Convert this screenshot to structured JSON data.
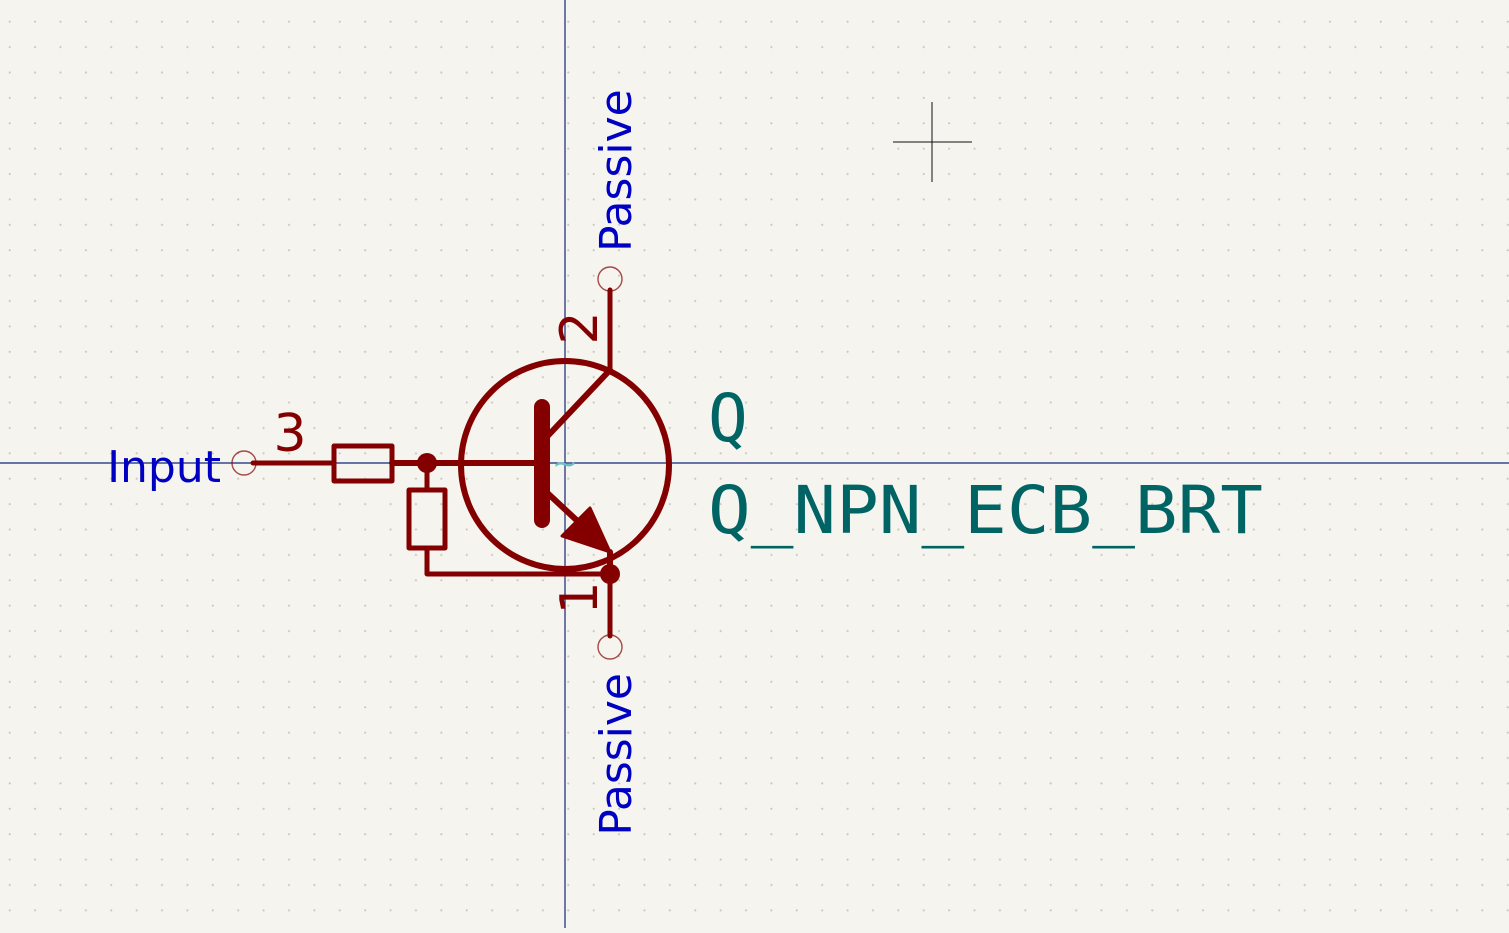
{
  "symbol": {
    "reference": "Q",
    "value": "Q_NPN_ECB_BRT"
  },
  "pins": [
    {
      "number": "3",
      "electrical_type": "Input"
    },
    {
      "number": "2",
      "electrical_type": "Passive"
    },
    {
      "number": "1",
      "electrical_type": "Passive"
    }
  ],
  "unit_marker": "~",
  "colors": {
    "background": "#f5f4ef",
    "symbol_body": "#840000",
    "pin_type_text": "#0000c2",
    "field_text": "#006464",
    "axis": "#132677",
    "unit_marker": "#6fbfc0"
  }
}
